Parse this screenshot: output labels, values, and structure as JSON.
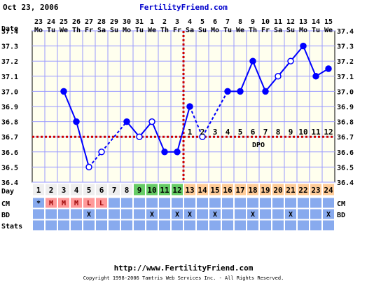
{
  "header": {
    "date": "Oct 23, 2006",
    "brand": "FertilityFriend.com"
  },
  "footer": {
    "url": "http://www.FertilityFriend.com",
    "copyright": "Copyright 1998-2006 Tamtris Web Services Inc. - All Rights Reserved."
  },
  "colors": {
    "line": "#0000ff",
    "coverline": "#cc0000",
    "grid": "#9999ff",
    "plot_bg": "#ffffee",
    "period_cell": "#ff9999",
    "fertile_cell": "#66cc66",
    "luteal_cell": "#ffcc99",
    "row_cell": "#88aaee"
  },
  "chart_data": {
    "type": "line",
    "ylim": [
      36.4,
      37.4
    ],
    "y_ticks": [
      "37.4",
      "37.3",
      "37.2",
      "37.1",
      "37.0",
      "36.9",
      "36.8",
      "36.7",
      "36.6",
      "36.5",
      "36.4"
    ],
    "x_rows": {
      "date_label": "Date",
      "dates": [
        "23",
        "24",
        "25",
        "26",
        "27",
        "28",
        "29",
        "30",
        "31",
        "1",
        "2",
        "3",
        "4",
        "5",
        "6",
        "7",
        "8",
        "9",
        "10",
        "11",
        "12",
        "13",
        "14",
        "15"
      ],
      "weekdays": [
        "Mo",
        "Tu",
        "We",
        "Th",
        "Fr",
        "Sa",
        "Su",
        "Mo",
        "Tu",
        "We",
        "Th",
        "Fr",
        "Sa",
        "Su",
        "Mo",
        "Tu",
        "We",
        "Th",
        "Fr",
        "Sa",
        "Su",
        "Mo",
        "Tu",
        "We"
      ],
      "day_label": "Day",
      "days": [
        "1",
        "2",
        "3",
        "4",
        "5",
        "6",
        "7",
        "8",
        "9",
        "10",
        "11",
        "12",
        "13",
        "14",
        "15",
        "16",
        "17",
        "18",
        "19",
        "20",
        "21",
        "22",
        "23",
        "24"
      ],
      "cm_label": "CM",
      "cm": [
        "*",
        "M",
        "M",
        "M",
        "L",
        "L",
        "",
        "",
        "",
        "",
        "",
        "",
        "",
        "",
        "",
        "",
        "",
        "",
        "",
        "",
        "",
        "",
        "",
        ""
      ],
      "bd_label": "BD",
      "bd": [
        "",
        "",
        "",
        "",
        "X",
        "",
        "",
        "",
        "",
        "X",
        "",
        "X",
        "X",
        "",
        "X",
        "",
        "",
        "X",
        "",
        "",
        "X",
        "",
        "",
        "X"
      ],
      "stats_label": "Stats"
    },
    "day_phase": [
      "period",
      "period",
      "period",
      "period",
      "period",
      "period",
      "plain",
      "plain",
      "fertile",
      "fertile",
      "fertile",
      "fertile",
      "luteal",
      "luteal",
      "luteal",
      "luteal",
      "luteal",
      "luteal",
      "luteal",
      "luteal",
      "luteal",
      "luteal",
      "luteal",
      "luteal"
    ],
    "series": [
      {
        "values": [
          null,
          null,
          37.0,
          36.8,
          36.5,
          36.6,
          null,
          36.8,
          36.7,
          36.8,
          36.6,
          36.6,
          36.9,
          36.7,
          null,
          37.0,
          37.0,
          37.2,
          37.0,
          37.1,
          37.2,
          37.3,
          37.1,
          37.15
        ],
        "open": [
          false,
          false,
          false,
          false,
          true,
          true,
          false,
          false,
          true,
          true,
          false,
          false,
          false,
          true,
          false,
          false,
          false,
          false,
          false,
          true,
          true,
          false,
          false,
          false
        ],
        "dashed_into": [
          false,
          false,
          false,
          false,
          false,
          true,
          false,
          true,
          false,
          false,
          false,
          false,
          false,
          true,
          false,
          true,
          false,
          false,
          false,
          false,
          false,
          false,
          false,
          false
        ]
      }
    ],
    "coverline": 36.7,
    "ovulation_day_index": 11,
    "dpo_label": "DPO",
    "dpo_numbers": [
      "1",
      "2",
      "3",
      "4",
      "5",
      "6",
      "7",
      "8",
      "9",
      "10",
      "11",
      "12"
    ],
    "grid": true
  }
}
